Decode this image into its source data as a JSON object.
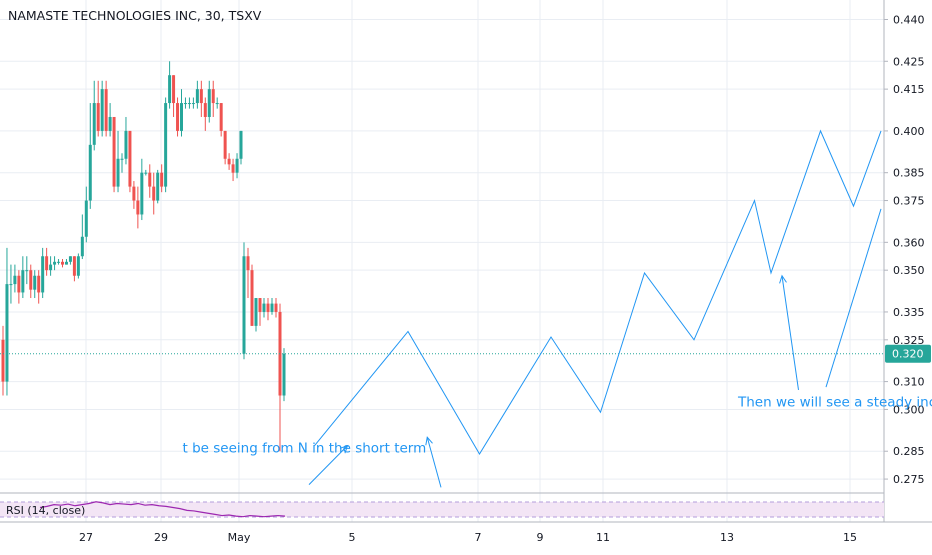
{
  "chart_data": {
    "type": "candlestick",
    "title": "NAMASTE TECHNOLOGIES INC, 30, TSXV",
    "y_axis": {
      "ticks": [
        0.44,
        0.425,
        0.415,
        0.4,
        0.385,
        0.375,
        0.36,
        0.35,
        0.335,
        0.325,
        0.31,
        0.3,
        0.285,
        0.275
      ],
      "tick_labels": [
        "0.440",
        "0.425",
        "0.415",
        "0.400",
        "0.385",
        "0.375",
        "0.360",
        "0.350",
        "0.335",
        "0.325",
        "0.310",
        "0.300",
        "0.285",
        "0.275"
      ],
      "ylim": [
        0.27,
        0.447
      ]
    },
    "x_axis": {
      "tick_labels": [
        "27",
        "29",
        "May",
        "5",
        "7",
        "9",
        "11",
        "13",
        "15"
      ]
    },
    "current_price": {
      "value": 0.32,
      "label": "0.320",
      "color": "#26a69a"
    },
    "colors": {
      "up": "#26a69a",
      "down": "#ef5350",
      "projection": "#2196f3",
      "rsi": "#9c27b0",
      "rsi_band": "#f3e5f5"
    },
    "candles": [
      [
        0.325,
        0.31,
        0.33,
        0.305
      ],
      [
        0.31,
        0.345,
        0.358,
        0.305
      ],
      [
        0.345,
        0.345,
        0.352,
        0.338
      ],
      [
        0.345,
        0.348,
        0.352,
        0.342
      ],
      [
        0.348,
        0.342,
        0.35,
        0.338
      ],
      [
        0.342,
        0.35,
        0.355,
        0.34
      ],
      [
        0.35,
        0.35,
        0.355,
        0.345
      ],
      [
        0.35,
        0.343,
        0.352,
        0.34
      ],
      [
        0.343,
        0.348,
        0.35,
        0.34
      ],
      [
        0.348,
        0.342,
        0.35,
        0.338
      ],
      [
        0.342,
        0.355,
        0.358,
        0.34
      ],
      [
        0.355,
        0.35,
        0.358,
        0.348
      ],
      [
        0.35,
        0.352,
        0.355,
        0.348
      ],
      [
        0.352,
        0.353,
        0.355,
        0.35
      ],
      [
        0.353,
        0.353,
        0.354,
        0.352
      ],
      [
        0.353,
        0.352,
        0.354,
        0.351
      ],
      [
        0.352,
        0.353,
        0.354,
        0.352
      ],
      [
        0.353,
        0.355,
        0.355,
        0.352
      ],
      [
        0.355,
        0.348,
        0.355,
        0.346
      ],
      [
        0.348,
        0.355,
        0.356,
        0.347
      ],
      [
        0.355,
        0.362,
        0.37,
        0.354
      ],
      [
        0.362,
        0.375,
        0.38,
        0.36
      ],
      [
        0.375,
        0.395,
        0.41,
        0.372
      ],
      [
        0.395,
        0.41,
        0.418,
        0.393
      ],
      [
        0.41,
        0.4,
        0.418,
        0.398
      ],
      [
        0.4,
        0.415,
        0.418,
        0.398
      ],
      [
        0.415,
        0.4,
        0.418,
        0.398
      ],
      [
        0.4,
        0.405,
        0.41,
        0.398
      ],
      [
        0.405,
        0.38,
        0.405,
        0.378
      ],
      [
        0.38,
        0.39,
        0.4,
        0.378
      ],
      [
        0.39,
        0.39,
        0.392,
        0.385
      ],
      [
        0.39,
        0.4,
        0.405,
        0.388
      ],
      [
        0.4,
        0.38,
        0.4,
        0.378
      ],
      [
        0.38,
        0.375,
        0.382,
        0.372
      ],
      [
        0.375,
        0.37,
        0.38,
        0.365
      ],
      [
        0.37,
        0.385,
        0.39,
        0.368
      ],
      [
        0.385,
        0.385,
        0.386,
        0.384
      ],
      [
        0.385,
        0.38,
        0.388,
        0.376
      ],
      [
        0.38,
        0.375,
        0.385,
        0.37
      ],
      [
        0.375,
        0.385,
        0.386,
        0.374
      ],
      [
        0.385,
        0.38,
        0.388,
        0.378
      ],
      [
        0.38,
        0.41,
        0.412,
        0.378
      ],
      [
        0.41,
        0.42,
        0.425,
        0.408
      ],
      [
        0.42,
        0.41,
        0.42,
        0.405
      ],
      [
        0.41,
        0.4,
        0.412,
        0.398
      ],
      [
        0.4,
        0.41,
        0.415,
        0.398
      ],
      [
        0.41,
        0.41,
        0.412,
        0.408
      ],
      [
        0.41,
        0.41,
        0.412,
        0.408
      ],
      [
        0.41,
        0.41,
        0.412,
        0.408
      ],
      [
        0.41,
        0.415,
        0.418,
        0.408
      ],
      [
        0.415,
        0.41,
        0.418,
        0.405
      ],
      [
        0.41,
        0.405,
        0.412,
        0.4
      ],
      [
        0.405,
        0.415,
        0.418,
        0.403
      ],
      [
        0.415,
        0.41,
        0.418,
        0.405
      ],
      [
        0.41,
        0.41,
        0.412,
        0.408
      ],
      [
        0.41,
        0.4,
        0.41,
        0.398
      ],
      [
        0.4,
        0.39,
        0.4,
        0.388
      ],
      [
        0.39,
        0.388,
        0.392,
        0.386
      ],
      [
        0.388,
        0.385,
        0.39,
        0.382
      ],
      [
        0.385,
        0.39,
        0.392,
        0.383
      ],
      [
        0.39,
        0.4,
        0.4,
        0.388
      ],
      [
        0.32,
        0.355,
        0.36,
        0.318
      ],
      [
        0.355,
        0.35,
        0.358,
        0.34
      ],
      [
        0.35,
        0.33,
        0.352,
        0.33
      ],
      [
        0.33,
        0.34,
        0.34,
        0.328
      ],
      [
        0.34,
        0.335,
        0.34,
        0.33
      ],
      [
        0.335,
        0.338,
        0.34,
        0.333
      ],
      [
        0.338,
        0.335,
        0.34,
        0.332
      ],
      [
        0.335,
        0.338,
        0.34,
        0.334
      ],
      [
        0.338,
        0.335,
        0.34,
        0.333
      ],
      [
        0.335,
        0.305,
        0.338,
        0.285
      ],
      [
        0.305,
        0.32,
        0.322,
        0.303
      ]
    ],
    "projection_lines": [
      [
        [
          1.5,
          0.287
        ],
        [
          3.2,
          0.328
        ],
        [
          4.5,
          0.284
        ],
        [
          5.8,
          0.326
        ],
        [
          6.7,
          0.299
        ],
        [
          7.5,
          0.349
        ],
        [
          8.4,
          0.325
        ],
        [
          9.5,
          0.375
        ],
        [
          9.8,
          0.349
        ],
        [
          10.7,
          0.4
        ],
        [
          11.3,
          0.373
        ],
        [
          11.8,
          0.4
        ]
      ],
      [
        [
          10.8,
          0.308
        ],
        [
          11.8,
          0.372
        ]
      ]
    ],
    "annotations": [
      {
        "text": "t be seeing from N in the short term",
        "x": -0.9,
        "y": 0.2845
      },
      {
        "text": "Then we will see a steady increas",
        "x": 9.2,
        "y": 0.301
      }
    ],
    "arrows": [
      [
        [
          1.4,
          0.273
        ],
        [
          2.1,
          0.287
        ]
      ],
      [
        [
          3.8,
          0.272
        ],
        [
          3.55,
          0.29
        ]
      ],
      [
        [
          10.3,
          0.307
        ],
        [
          10.0,
          0.348
        ]
      ]
    ],
    "rsi": {
      "label": "RSI (14, close)",
      "series": [
        50,
        52,
        55,
        54,
        56,
        53,
        55,
        57,
        60,
        58,
        55,
        57,
        56,
        55,
        57,
        54,
        55,
        53,
        52,
        50,
        48,
        45,
        44,
        42,
        40,
        38,
        36,
        37,
        35,
        34,
        36,
        35,
        34,
        35,
        36,
        35
      ]
    }
  }
}
